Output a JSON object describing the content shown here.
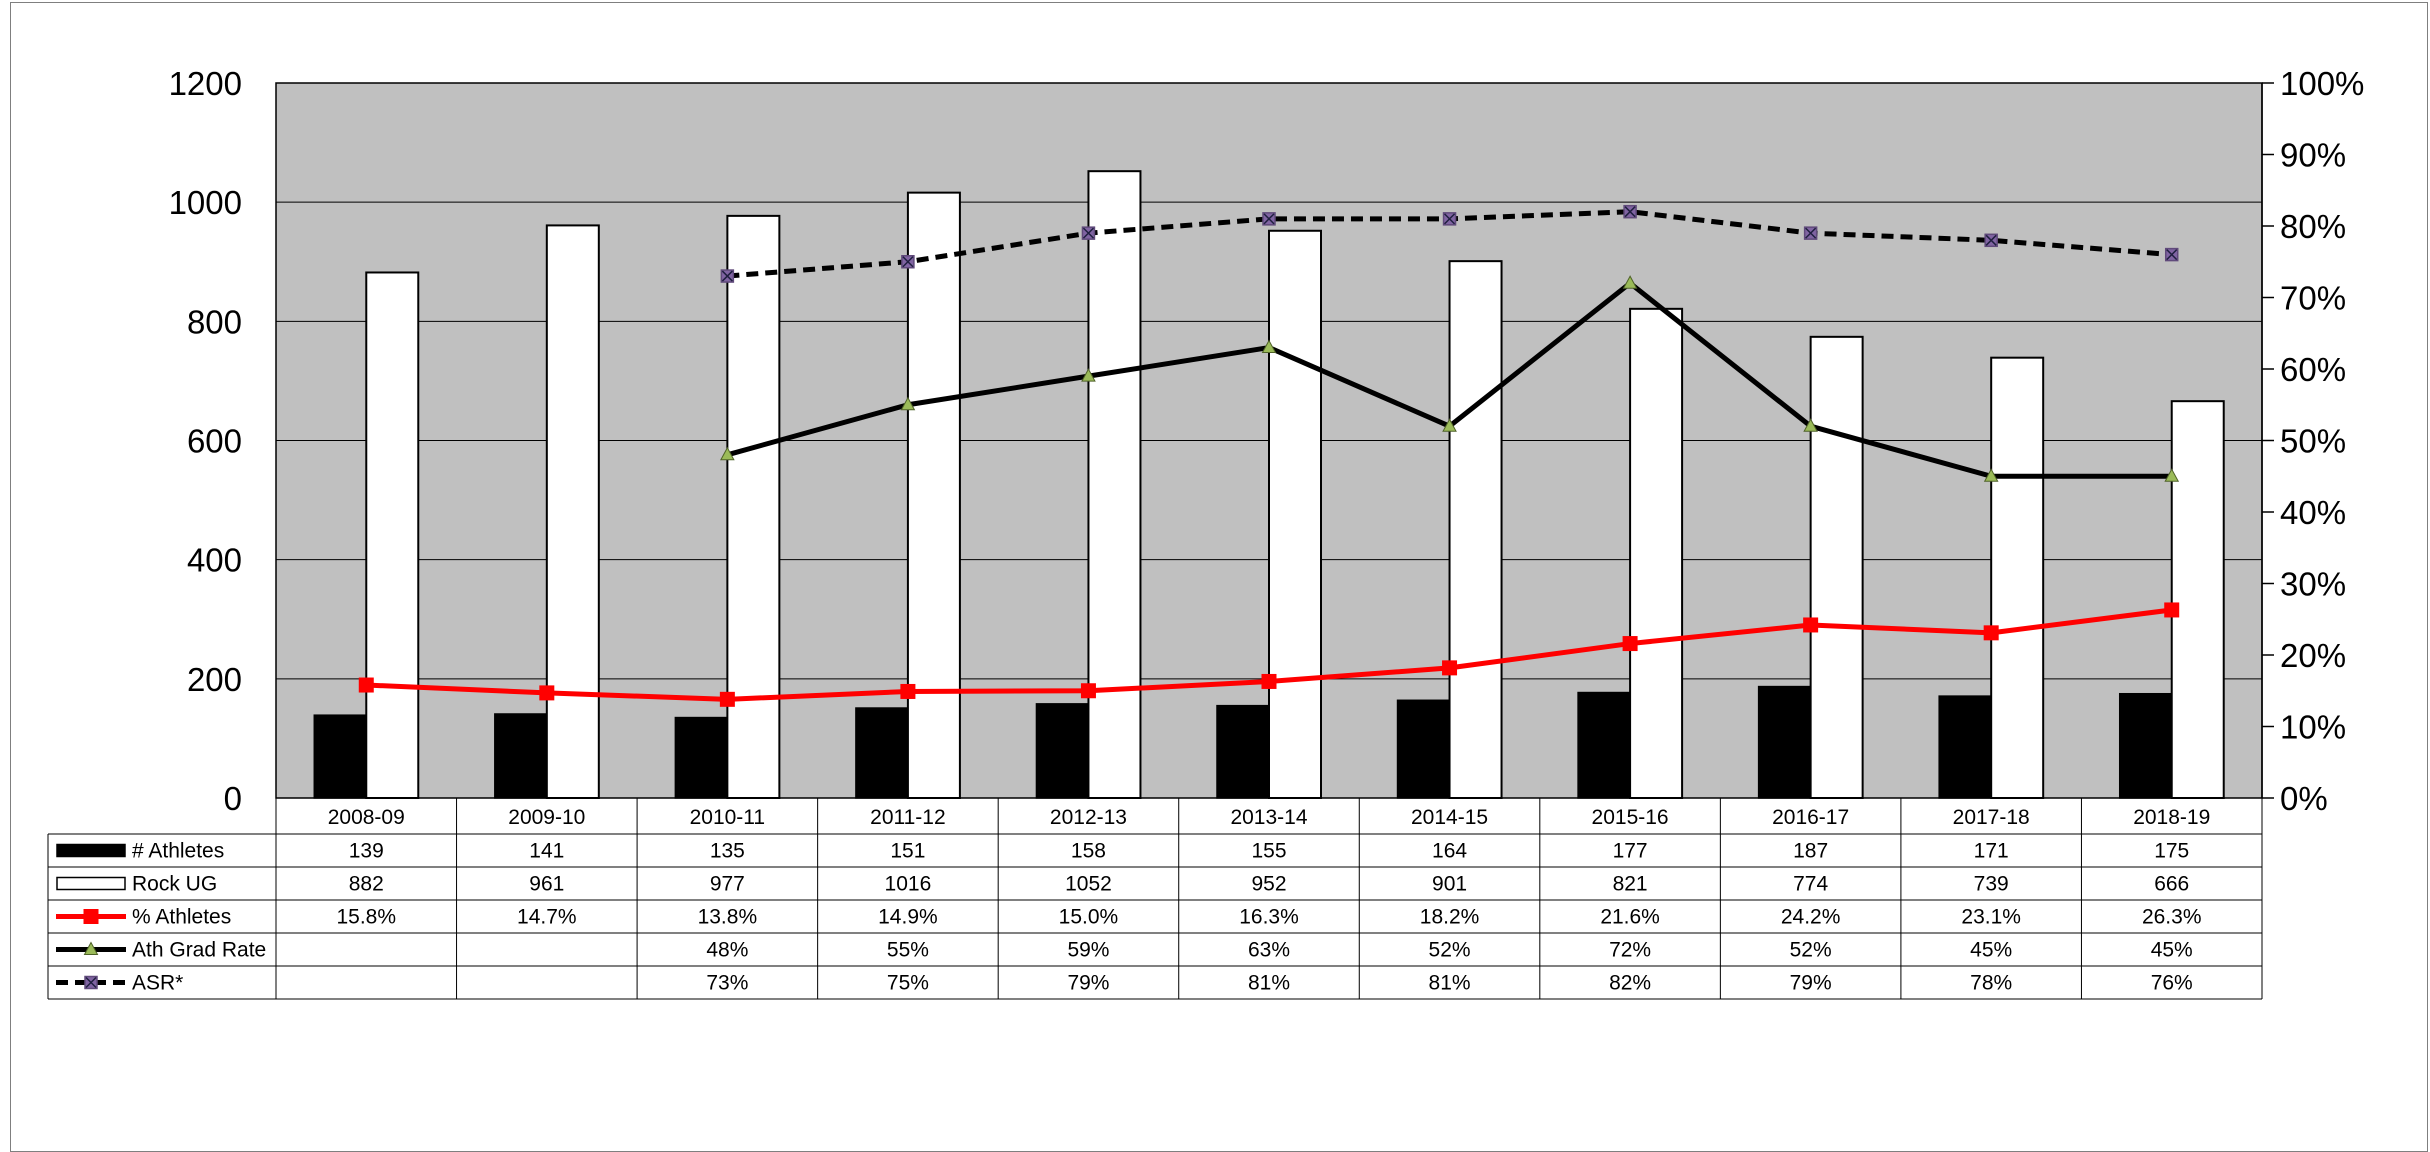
{
  "chart_data": {
    "type": "bar",
    "combo": [
      "bar",
      "bar",
      "line",
      "line",
      "line"
    ],
    "categories": [
      "2008-09",
      "2009-10",
      "2010-11",
      "2011-12",
      "2012-13",
      "2013-14",
      "2014-15",
      "2015-16",
      "2016-17",
      "2017-18",
      "2018-19"
    ],
    "left_axis": {
      "min": 0,
      "max": 1200,
      "ticks": [
        "0",
        "200",
        "400",
        "600",
        "800",
        "1000",
        "1200"
      ],
      "tick_values": [
        0,
        200,
        400,
        600,
        800,
        1000,
        1200
      ]
    },
    "right_axis": {
      "min": 0,
      "max": 1,
      "ticks": [
        "0%",
        "10%",
        "20%",
        "30%",
        "40%",
        "50%",
        "60%",
        "70%",
        "80%",
        "90%",
        "100%"
      ],
      "tick_values": [
        0,
        0.1,
        0.2,
        0.3,
        0.4,
        0.5,
        0.6,
        0.7,
        0.8,
        0.9,
        1.0
      ]
    },
    "grid": true,
    "plot_background": "#c0c0c0",
    "series": [
      {
        "name": "# Athletes",
        "type": "bar",
        "axis": "left",
        "color": "#000000",
        "values": [
          139,
          141,
          135,
          151,
          158,
          155,
          164,
          177,
          187,
          171,
          175
        ],
        "labels": [
          "139",
          "141",
          "135",
          "151",
          "158",
          "155",
          "164",
          "177",
          "187",
          "171",
          "175"
        ]
      },
      {
        "name": "Rock UG",
        "type": "bar",
        "axis": "left",
        "color": "#ffffff",
        "values": [
          882,
          961,
          977,
          1016,
          1052,
          952,
          901,
          821,
          774,
          739,
          666
        ],
        "labels": [
          "882",
          "961",
          "977",
          "1016",
          "1052",
          "952",
          "901",
          "821",
          "774",
          "739",
          "666"
        ]
      },
      {
        "name": "% Athletes",
        "type": "line",
        "axis": "right",
        "color": "#ff0000",
        "marker": "square",
        "values": [
          0.158,
          0.147,
          0.138,
          0.149,
          0.15,
          0.163,
          0.182,
          0.216,
          0.242,
          0.231,
          0.263
        ],
        "labels": [
          "15.8%",
          "14.7%",
          "13.8%",
          "14.9%",
          "15.0%",
          "16.3%",
          "18.2%",
          "21.6%",
          "24.2%",
          "23.1%",
          "26.3%"
        ]
      },
      {
        "name": "Ath Grad Rate",
        "type": "line",
        "axis": "right",
        "color": "#000000",
        "marker": "triangle",
        "marker_color": "#9bbb59",
        "values": [
          null,
          null,
          0.48,
          0.55,
          0.59,
          0.63,
          0.52,
          0.72,
          0.52,
          0.45,
          0.45
        ],
        "labels": [
          "",
          "",
          "48%",
          "55%",
          "59%",
          "63%",
          "52%",
          "72%",
          "52%",
          "45%",
          "45%"
        ]
      },
      {
        "name": "ASR*",
        "type": "line",
        "axis": "right",
        "color": "#000000",
        "dashed": true,
        "marker": "x-square",
        "marker_color": "#604a7b",
        "values": [
          null,
          null,
          0.73,
          0.75,
          0.79,
          0.81,
          0.81,
          0.82,
          0.79,
          0.78,
          0.76
        ],
        "labels": [
          "",
          "",
          "73%",
          "75%",
          "79%",
          "81%",
          "81%",
          "82%",
          "79%",
          "78%",
          "76%"
        ]
      }
    ]
  }
}
